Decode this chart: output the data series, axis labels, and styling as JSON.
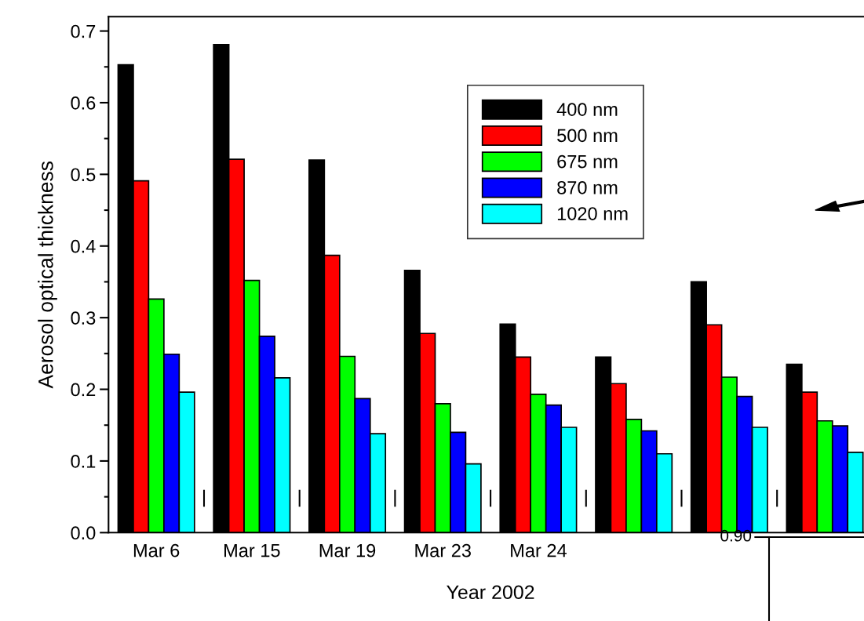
{
  "chart_data": [
    {
      "type": "bar",
      "xlabel": "Year 2002",
      "ylabel": "Aerosol optical thickness",
      "categories": [
        "Mar 6",
        "Mar 15",
        "Mar 19",
        "Mar 23",
        "Mar 24",
        null,
        null,
        null
      ],
      "series": [
        {
          "name": "400 nm",
          "color": "#000000",
          "values": [
            0.653,
            0.681,
            0.52,
            0.366,
            0.291,
            0.245,
            0.35,
            0.235
          ]
        },
        {
          "name": "500 nm",
          "color": "#ff0000",
          "values": [
            0.491,
            0.521,
            0.387,
            0.278,
            0.245,
            0.208,
            0.29,
            0.196
          ]
        },
        {
          "name": "675 nm",
          "color": "#00ff00",
          "values": [
            0.326,
            0.352,
            0.246,
            0.18,
            0.193,
            0.158,
            0.217,
            0.156
          ]
        },
        {
          "name": "870 nm",
          "color": "#0000ff",
          "values": [
            0.249,
            0.274,
            0.187,
            0.14,
            0.178,
            0.142,
            0.19,
            0.149
          ]
        },
        {
          "name": "1020 nm",
          "color": "#00ffff",
          "values": [
            0.196,
            0.216,
            0.138,
            0.096,
            0.147,
            0.11,
            0.147,
            0.112
          ]
        }
      ],
      "ylim": [
        0,
        0.72
      ],
      "yticks": [
        {
          "value": 0,
          "label": "0.0"
        },
        0.1,
        0.2,
        0.3,
        0.4,
        0.5,
        0.6,
        0.7
      ],
      "legend": "top",
      "grid": false
    },
    {
      "type": "other",
      "annotations": [
        "0.90"
      ]
    }
  ]
}
